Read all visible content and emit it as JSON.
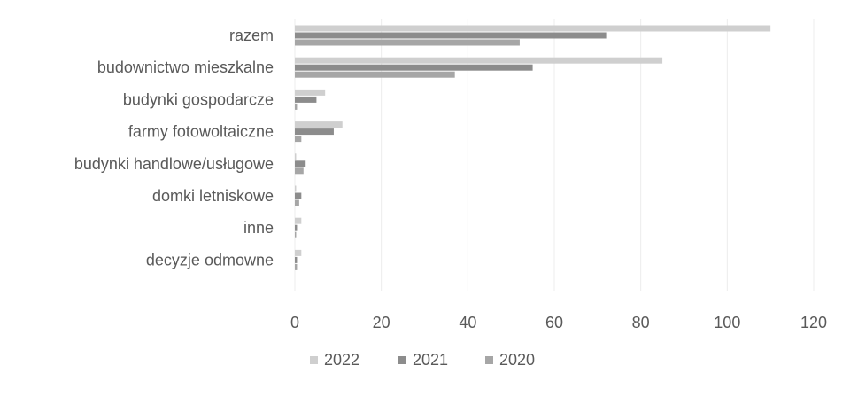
{
  "chart_data": {
    "type": "bar",
    "orientation": "horizontal",
    "categories": [
      "razem",
      "budownictwo mieszkalne",
      "budynki gospodarcze",
      "farmy fotowoltaiczne",
      "budynki handlowe/usługowe",
      "domki letniskowe",
      "inne",
      "decyzje odmowne"
    ],
    "series": [
      {
        "name": "2022",
        "color": "#cfcfcf",
        "values": [
          110,
          85,
          7,
          11,
          0.3,
          0.3,
          1.5,
          1.5
        ]
      },
      {
        "name": "2021",
        "color": "#8c8c8c",
        "values": [
          72,
          55,
          5,
          9,
          2.5,
          1.5,
          0.5,
          0.5
        ]
      },
      {
        "name": "2020",
        "color": "#a6a6a6",
        "values": [
          52,
          37,
          0.5,
          1.5,
          2,
          1,
          0.3,
          0.5
        ]
      }
    ],
    "xlim": [
      0,
      120
    ],
    "xticks": [
      "0",
      "20",
      "40",
      "60",
      "80",
      "100",
      "120"
    ],
    "grid": true,
    "legend_position": "bottom",
    "title": "",
    "xlabel": "",
    "ylabel": ""
  }
}
